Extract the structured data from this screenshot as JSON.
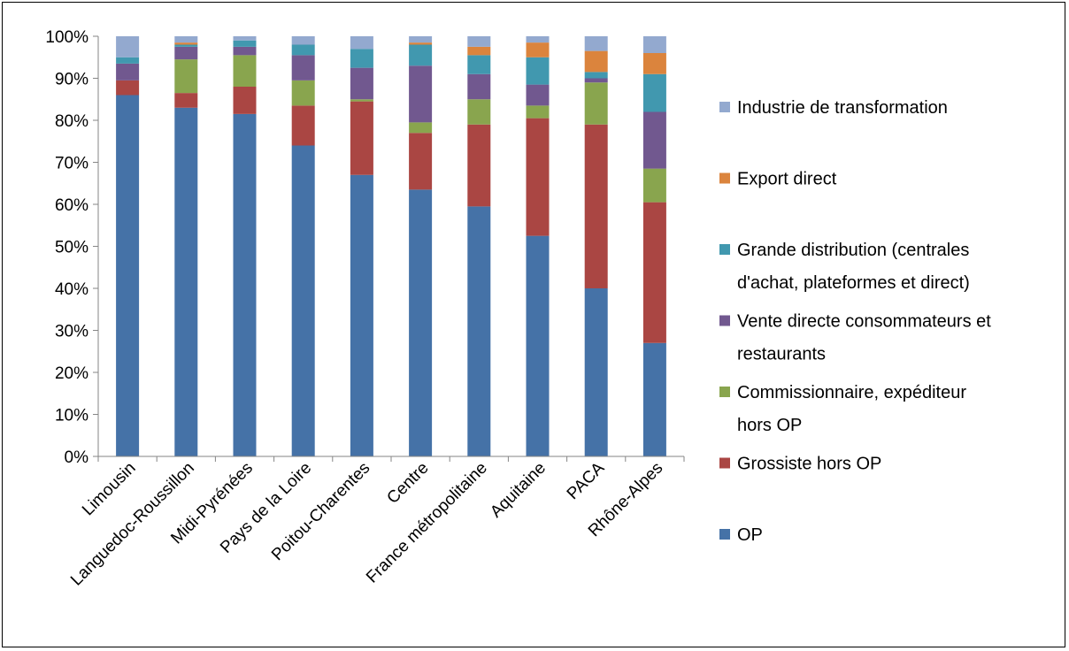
{
  "chart_data": {
    "type": "bar",
    "stacked": true,
    "normalized": true,
    "title": "",
    "xlabel": "",
    "ylabel": "",
    "ylim": [
      0,
      1
    ],
    "y_ticks": [
      "0%",
      "10%",
      "20%",
      "30%",
      "40%",
      "50%",
      "60%",
      "70%",
      "80%",
      "90%",
      "100%"
    ],
    "grid": false,
    "legend_position": "right",
    "categories": [
      "Limousin",
      "Languedoc-Roussillon",
      "Midi-Pyrénées",
      "Pays de la Loire",
      "Poitou-Charentes",
      "Centre",
      "France métropolitaine",
      "Aquitaine",
      "PACA",
      "Rhône-Alpes"
    ],
    "series": [
      {
        "name": "OP",
        "color": "#4572A7",
        "values": [
          0.86,
          0.83,
          0.815,
          0.74,
          0.67,
          0.635,
          0.595,
          0.525,
          0.4,
          0.27
        ]
      },
      {
        "name": "Grossiste hors OP",
        "color": "#AA4643",
        "values": [
          0.035,
          0.035,
          0.065,
          0.095,
          0.175,
          0.135,
          0.195,
          0.28,
          0.39,
          0.335
        ]
      },
      {
        "name": "Commissionnaire, expéditeur hors OP",
        "color": "#89A54E",
        "values": [
          0.0,
          0.08,
          0.075,
          0.06,
          0.005,
          0.025,
          0.06,
          0.03,
          0.1,
          0.08
        ]
      },
      {
        "name": "Vente directe consommateurs et restaurants",
        "color": "#71588F",
        "values": [
          0.04,
          0.03,
          0.02,
          0.06,
          0.075,
          0.135,
          0.06,
          0.05,
          0.01,
          0.135
        ]
      },
      {
        "name": "Grande distribution (centrales d'achat, plateformes et direct)",
        "color": "#4198AF",
        "values": [
          0.015,
          0.005,
          0.015,
          0.025,
          0.045,
          0.05,
          0.045,
          0.065,
          0.015,
          0.09
        ]
      },
      {
        "name": "Export direct",
        "color": "#DB843D",
        "values": [
          0.0,
          0.005,
          0.0,
          0.0,
          0.0,
          0.005,
          0.02,
          0.035,
          0.05,
          0.05
        ]
      },
      {
        "name": "Industrie de transformation",
        "color": "#93A9CF",
        "values": [
          0.05,
          0.015,
          0.01,
          0.02,
          0.03,
          0.015,
          0.025,
          0.015,
          0.035,
          0.04
        ]
      }
    ],
    "legend_order": [
      "Industrie de transformation",
      "Export direct",
      "Grande distribution (centrales d'achat, plateformes et direct)",
      "Vente directe consommateurs et restaurants",
      "Commissionnaire, expéditeur hors OP",
      "Grossiste hors OP",
      "OP"
    ],
    "legend_lines": {
      "Industrie de transformation": [
        "Industrie de transformation"
      ],
      "Export direct": [
        "Export direct"
      ],
      "Grande distribution (centrales d'achat, plateformes et direct)": [
        "Grande distribution (centrales",
        "d'achat, plateformes et direct)"
      ],
      "Vente directe consommateurs et restaurants": [
        "Vente directe consommateurs et",
        "restaurants"
      ],
      "Commissionnaire, expéditeur hors OP": [
        "Commissionnaire, expéditeur",
        "hors OP"
      ],
      "Grossiste hors OP": [
        "Grossiste hors OP"
      ],
      "OP": [
        "OP"
      ]
    }
  }
}
